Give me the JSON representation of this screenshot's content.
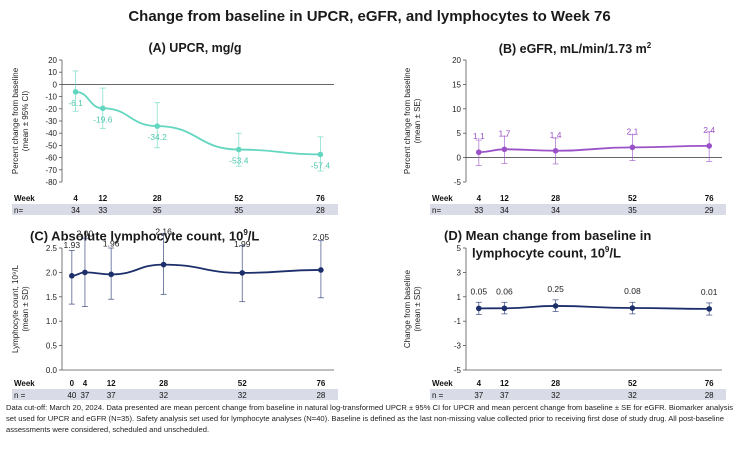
{
  "title": "Change from baseline in UPCR, eGFR, and lymphocytes to Week 76",
  "footnote": "Data cut-off: March 20, 2024. Data presented are mean percent change from baseline in natural log-transformed UPCR ± 95% CI for UPCR and mean percent change from baseline ± SE for eGFR. Biomarker analysis set used for UPCR and eGFR (N=35). Safety analysis set used for lymphocyte analyses (N=40). Baseline is defined as the last non-missing value collected prior to receiving first dose of study drug. All post-baseline assessments were considered, scheduled and unscheduled.",
  "chart_data": [
    {
      "id": "A",
      "type": "line",
      "title": "(A) UPCR, mg/g",
      "ylabel": "Percent change from baseline (mean ± 95% CI)",
      "ylim": [
        -80,
        20
      ],
      "yticks": [
        "20",
        "10",
        "0",
        "-10",
        "-20",
        "-30",
        "-40",
        "-50",
        "-60",
        "-70",
        "-80"
      ],
      "grid": false,
      "zero_line": true,
      "color": "#62d6bf",
      "x": [
        4,
        12,
        28,
        52,
        76
      ],
      "values": [
        -6.1,
        -19.6,
        -34.2,
        -53.4,
        -57.4
      ],
      "labels": [
        "-6.1",
        "-19.6",
        "-34.2",
        "-53.4",
        "-57.4"
      ],
      "err_low": [
        -22,
        -36,
        -52,
        -67,
        -71
      ],
      "err_high": [
        11,
        -3,
        -15,
        -40,
        -43
      ],
      "table": {
        "row1_label": "Week",
        "row2_label": "n=",
        "weeks": [
          "4",
          "12",
          "28",
          "52",
          "76"
        ],
        "n": [
          "34",
          "33",
          "35",
          "35",
          "28"
        ]
      }
    },
    {
      "id": "B",
      "type": "line",
      "title": "(B) eGFR, mL/min/1.73 m",
      "title_sup": "2",
      "ylabel": "Percent change from baseline (mean ± SE)",
      "ylim": [
        -5,
        20
      ],
      "yticks": [
        "20",
        "15",
        "10",
        "5",
        "0",
        "-5"
      ],
      "grid": false,
      "zero_line": true,
      "color": "#9b52c8",
      "x": [
        4,
        12,
        28,
        52,
        76
      ],
      "values": [
        1.1,
        1.7,
        1.4,
        2.1,
        2.4
      ],
      "labels": [
        "1.1",
        "1.7",
        "1.4",
        "2.1",
        "2.4"
      ],
      "err_low": [
        -1.6,
        -1.2,
        -1.3,
        -0.6,
        -0.8
      ],
      "err_high": [
        3.6,
        4.4,
        4.0,
        4.7,
        5.3
      ],
      "table": {
        "row1_label": "Week",
        "row2_label": "n=",
        "weeks": [
          "4",
          "12",
          "28",
          "52",
          "76"
        ],
        "n": [
          "33",
          "34",
          "34",
          "35",
          "29"
        ]
      }
    },
    {
      "id": "C",
      "type": "line",
      "title": "(C) Absolute lymphocyte count, 10",
      "title_sup": "9",
      "title_suffix": "/L",
      "ylabel": "Lymphocyte count, 10⁹/L (mean ± SD)",
      "ylim": [
        0,
        2.5
      ],
      "yticks": [
        "2.5",
        "2.0",
        "1.5",
        "1.0",
        "0.5",
        "0.0"
      ],
      "grid": false,
      "zero_line": false,
      "color": "#1c2f6b",
      "x": [
        0,
        4,
        12,
        28,
        52,
        76
      ],
      "values": [
        1.93,
        2.0,
        1.96,
        2.16,
        1.99,
        2.05
      ],
      "labels": [
        "1.93",
        "2.00",
        "1.96",
        "2.16",
        "1.99",
        "2.05"
      ],
      "err_low": [
        1.35,
        1.3,
        1.45,
        1.55,
        1.4,
        1.48
      ],
      "err_high": [
        2.45,
        2.7,
        2.5,
        2.8,
        2.55,
        2.65
      ],
      "table": {
        "row1_label": "Week",
        "row2_label": "n =",
        "weeks": [
          "0",
          "4",
          "12",
          "28",
          "52",
          "76"
        ],
        "n": [
          "40",
          "37",
          "37",
          "32",
          "32",
          "28"
        ]
      }
    },
    {
      "id": "D",
      "type": "line",
      "title": "(D) Mean change from baseline in",
      "title_line2": "lymphocyte count, 10",
      "title_sup": "9",
      "title_suffix": "/L",
      "ylabel": "Change from baseline (mean ± SD)",
      "ylim": [
        -5,
        5
      ],
      "yticks": [
        "5",
        "3",
        "1",
        "-1",
        "-3",
        "-5"
      ],
      "grid": false,
      "zero_line": false,
      "color": "#1c2f6b",
      "x": [
        4,
        12,
        28,
        52,
        76
      ],
      "values": [
        0.05,
        0.06,
        0.25,
        0.08,
        0.01
      ],
      "labels": [
        "0.05",
        "0.06",
        "0.25",
        "0.08",
        "0.01"
      ],
      "err_low": [
        -0.45,
        -0.4,
        -0.2,
        -0.4,
        -0.5
      ],
      "err_high": [
        0.55,
        0.55,
        0.75,
        0.55,
        0.5
      ],
      "table": {
        "row1_label": "Week",
        "row2_label": "n =",
        "weeks": [
          "4",
          "12",
          "28",
          "52",
          "76"
        ],
        "n": [
          "37",
          "37",
          "32",
          "32",
          "28"
        ]
      }
    }
  ]
}
